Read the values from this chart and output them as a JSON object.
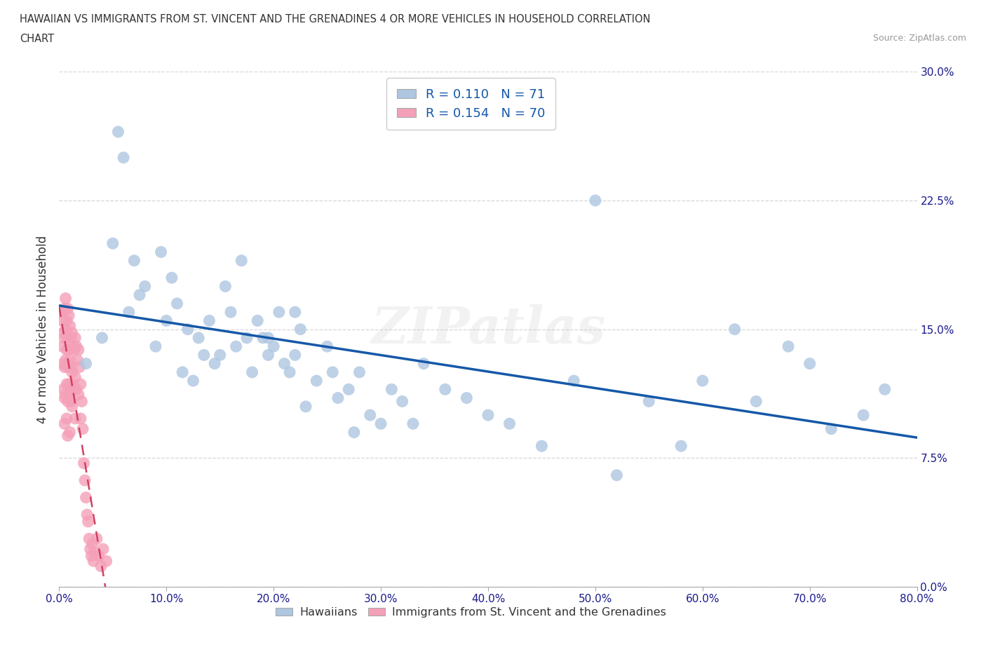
{
  "title_line1": "HAWAIIAN VS IMMIGRANTS FROM ST. VINCENT AND THE GRENADINES 4 OR MORE VEHICLES IN HOUSEHOLD CORRELATION",
  "title_line2": "CHART",
  "source": "Source: ZipAtlas.com",
  "ylabel": "4 or more Vehicles in Household",
  "xlim": [
    0.0,
    0.8
  ],
  "ylim": [
    0.0,
    0.3
  ],
  "xticks": [
    0.0,
    0.1,
    0.2,
    0.3,
    0.4,
    0.5,
    0.6,
    0.7,
    0.8
  ],
  "xticklabels": [
    "0.0%",
    "10.0%",
    "20.0%",
    "30.0%",
    "40.0%",
    "50.0%",
    "60.0%",
    "70.0%",
    "80.0%"
  ],
  "yticks": [
    0.0,
    0.075,
    0.15,
    0.225,
    0.3
  ],
  "yticklabels": [
    "0.0%",
    "7.5%",
    "15.0%",
    "22.5%",
    "30.0%"
  ],
  "R_hawaiian": 0.11,
  "N_hawaiian": 71,
  "R_svg": 0.154,
  "N_svg": 70,
  "color_hawaiian": "#aec6e0",
  "color_svg": "#f4a0b8",
  "trend_color_hawaiian": "#1558a8",
  "trend_color_svg": "#d04060",
  "background_color": "#ffffff",
  "grid_color": "#cccccc",
  "hawaiian_x": [
    0.025,
    0.04,
    0.05,
    0.055,
    0.06,
    0.065,
    0.07,
    0.075,
    0.08,
    0.09,
    0.095,
    0.1,
    0.105,
    0.11,
    0.115,
    0.12,
    0.125,
    0.13,
    0.135,
    0.14,
    0.145,
    0.15,
    0.155,
    0.16,
    0.165,
    0.17,
    0.175,
    0.18,
    0.185,
    0.19,
    0.195,
    0.2,
    0.205,
    0.21,
    0.215,
    0.22,
    0.225,
    0.23,
    0.24,
    0.25,
    0.255,
    0.26,
    0.27,
    0.275,
    0.28,
    0.29,
    0.3,
    0.31,
    0.32,
    0.33,
    0.34,
    0.36,
    0.38,
    0.4,
    0.42,
    0.45,
    0.48,
    0.5,
    0.52,
    0.55,
    0.58,
    0.6,
    0.63,
    0.65,
    0.68,
    0.7,
    0.72,
    0.75,
    0.77,
    0.195,
    0.22
  ],
  "hawaiian_y": [
    0.13,
    0.145,
    0.2,
    0.265,
    0.25,
    0.16,
    0.19,
    0.17,
    0.175,
    0.14,
    0.195,
    0.155,
    0.18,
    0.165,
    0.125,
    0.15,
    0.12,
    0.145,
    0.135,
    0.155,
    0.13,
    0.135,
    0.175,
    0.16,
    0.14,
    0.19,
    0.145,
    0.125,
    0.155,
    0.145,
    0.135,
    0.14,
    0.16,
    0.13,
    0.125,
    0.135,
    0.15,
    0.105,
    0.12,
    0.14,
    0.125,
    0.11,
    0.115,
    0.09,
    0.125,
    0.1,
    0.095,
    0.115,
    0.108,
    0.095,
    0.13,
    0.115,
    0.11,
    0.1,
    0.095,
    0.082,
    0.12,
    0.225,
    0.065,
    0.108,
    0.082,
    0.12,
    0.15,
    0.108,
    0.14,
    0.13,
    0.092,
    0.1,
    0.115,
    0.145,
    0.16
  ],
  "svg_x": [
    0.002,
    0.003,
    0.003,
    0.004,
    0.004,
    0.004,
    0.005,
    0.005,
    0.005,
    0.005,
    0.005,
    0.006,
    0.006,
    0.006,
    0.006,
    0.007,
    0.007,
    0.007,
    0.007,
    0.008,
    0.008,
    0.008,
    0.008,
    0.008,
    0.009,
    0.009,
    0.009,
    0.01,
    0.01,
    0.01,
    0.01,
    0.011,
    0.011,
    0.011,
    0.012,
    0.012,
    0.012,
    0.013,
    0.013,
    0.014,
    0.014,
    0.015,
    0.015,
    0.015,
    0.016,
    0.016,
    0.017,
    0.018,
    0.018,
    0.019,
    0.02,
    0.02,
    0.021,
    0.022,
    0.023,
    0.024,
    0.025,
    0.026,
    0.027,
    0.028,
    0.029,
    0.03,
    0.031,
    0.032,
    0.033,
    0.035,
    0.037,
    0.039,
    0.041,
    0.044
  ],
  "svg_y": [
    0.16,
    0.155,
    0.14,
    0.148,
    0.13,
    0.115,
    0.162,
    0.145,
    0.128,
    0.11,
    0.095,
    0.168,
    0.15,
    0.132,
    0.112,
    0.155,
    0.138,
    0.118,
    0.098,
    0.162,
    0.145,
    0.128,
    0.108,
    0.088,
    0.158,
    0.138,
    0.118,
    0.152,
    0.132,
    0.112,
    0.09,
    0.145,
    0.128,
    0.108,
    0.148,
    0.125,
    0.105,
    0.14,
    0.118,
    0.138,
    0.115,
    0.145,
    0.122,
    0.098,
    0.14,
    0.115,
    0.132,
    0.138,
    0.112,
    0.128,
    0.118,
    0.098,
    0.108,
    0.092,
    0.072,
    0.062,
    0.052,
    0.042,
    0.038,
    0.028,
    0.022,
    0.018,
    0.025,
    0.015,
    0.02,
    0.028,
    0.018,
    0.012,
    0.022,
    0.015
  ],
  "trend_svg_x0": 0.0,
  "trend_svg_x1": 0.28,
  "trend_hawaiian_x0": 0.0,
  "trend_hawaiian_x1": 0.8
}
